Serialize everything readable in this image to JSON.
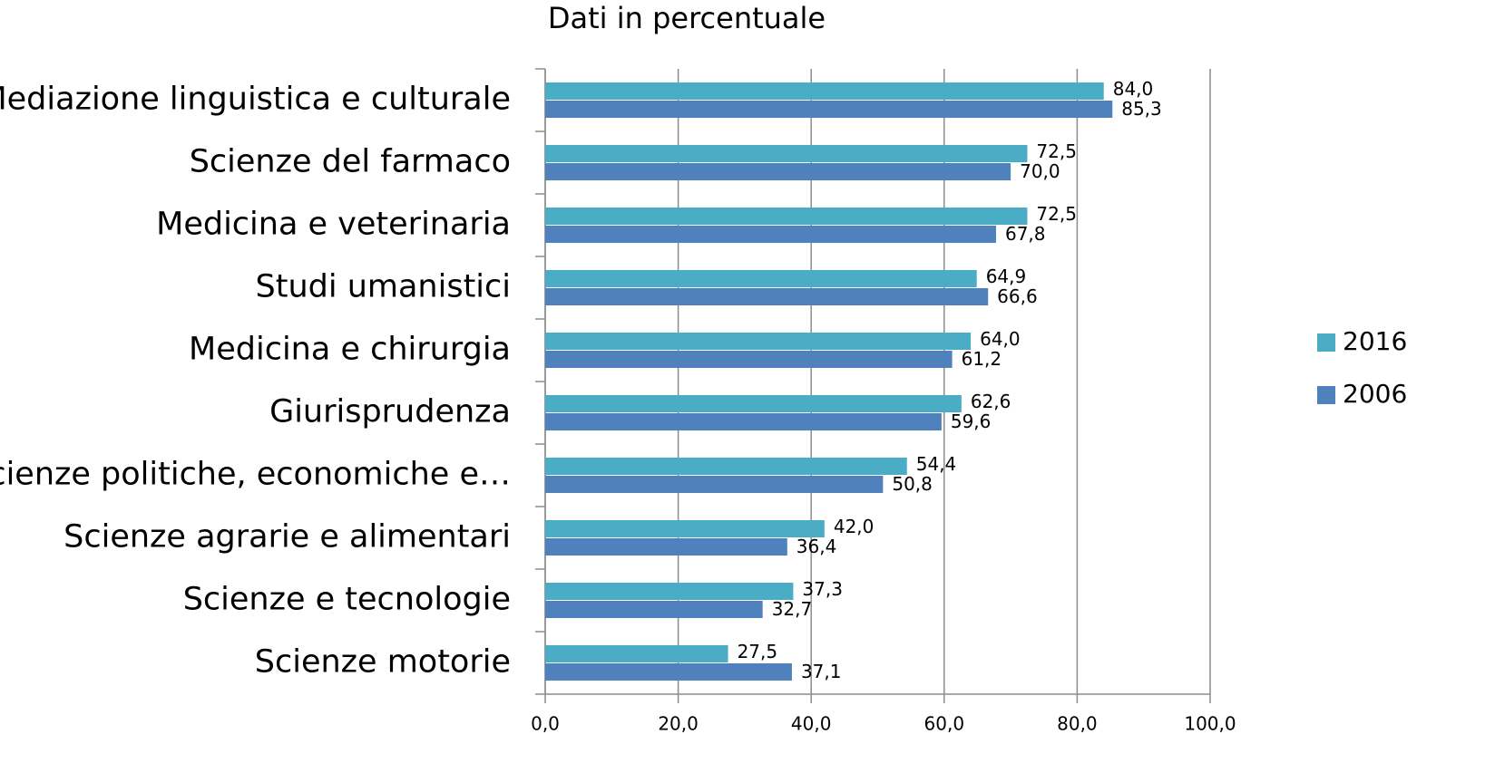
{
  "chart_data": {
    "type": "barh",
    "title": "Dati in percentuale",
    "categories": [
      "Mediazione linguistica e culturale",
      "Scienze del farmaco",
      "Medicina e veterinaria",
      "Studi umanistici",
      "Medicina e chirurgia",
      "Giurisprudenza",
      "Scienze politiche, economiche e…",
      "Scienze agrarie e alimentari",
      "Scienze e tecnologie",
      "Scienze motorie"
    ],
    "series": [
      {
        "name": "2016",
        "color": "#4bacc6",
        "values": [
          84.0,
          72.5,
          72.5,
          64.9,
          64.0,
          62.6,
          54.4,
          42.0,
          37.3,
          27.5
        ],
        "value_labels": [
          "84,0",
          "72,5",
          "72,5",
          "64,9",
          "64,0",
          "62,6",
          "54,4",
          "42,0",
          "37,3",
          "27,5"
        ]
      },
      {
        "name": "2006",
        "color": "#4f81bd",
        "values": [
          85.3,
          70.0,
          67.8,
          66.6,
          61.2,
          59.6,
          50.8,
          36.4,
          32.7,
          37.1
        ],
        "value_labels": [
          "85,3",
          "70,0",
          "67,8",
          "66,6",
          "61,2",
          "59,6",
          "50,8",
          "36,4",
          "32,7",
          "37,1"
        ]
      }
    ],
    "xlim": [
      0,
      100
    ],
    "xticks": [
      {
        "value": 0,
        "label": "0,0"
      },
      {
        "value": 20,
        "label": "20,0"
      },
      {
        "value": 40,
        "label": "40,0"
      },
      {
        "value": 60,
        "label": "60,0"
      },
      {
        "value": 80,
        "label": "80,0"
      },
      {
        "value": 100,
        "label": "100,0"
      }
    ],
    "grid": true,
    "legend": "right"
  }
}
